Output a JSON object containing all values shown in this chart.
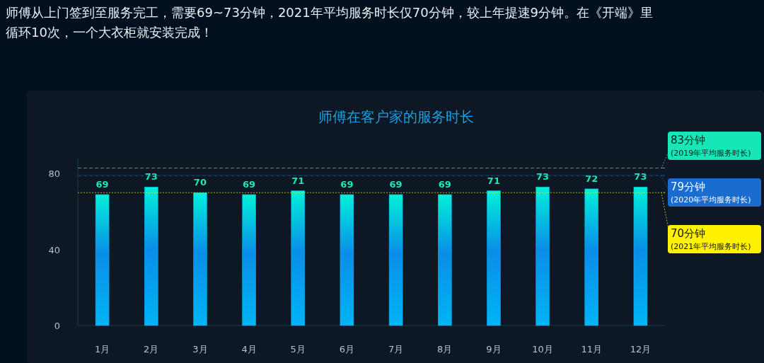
{
  "chart_data": {
    "type": "bar",
    "title": "师傅在客户家的服务时长",
    "categories": [
      "1月",
      "2月",
      "3月",
      "4月",
      "5月",
      "6月",
      "7月",
      "8月",
      "9月",
      "10月",
      "11月",
      "12月"
    ],
    "values": [
      69,
      73,
      70,
      69,
      71,
      69,
      69,
      69,
      71,
      73,
      72,
      73
    ],
    "color": "#00b4f5",
    "data_labels": true,
    "ylim": [
      0,
      88
    ],
    "yticks": [
      0,
      40,
      80
    ],
    "ref_lines": [
      {
        "axis": "y",
        "value": 83,
        "label": "83分钟 (2019年平均服务时长)",
        "color": "#16e6b8",
        "line_style": "dashed"
      },
      {
        "axis": "y",
        "value": 79,
        "label": "79分钟 (2020年平均服务时长)",
        "color": "#1a6ccf",
        "line_style": "dashed"
      },
      {
        "axis": "y",
        "value": 70,
        "label": "70分钟 (2021年平均服务时长)",
        "color": "#fff200",
        "line_style": "dotted"
      }
    ],
    "annotations": [
      "师傅从上门签到至服务完工，需要69~73分钟，2021年平均服务时长仅70分钟，较上年提速9分钟。在《开端》里循环10次，一个大衣柜就安装完成！"
    ]
  }
}
